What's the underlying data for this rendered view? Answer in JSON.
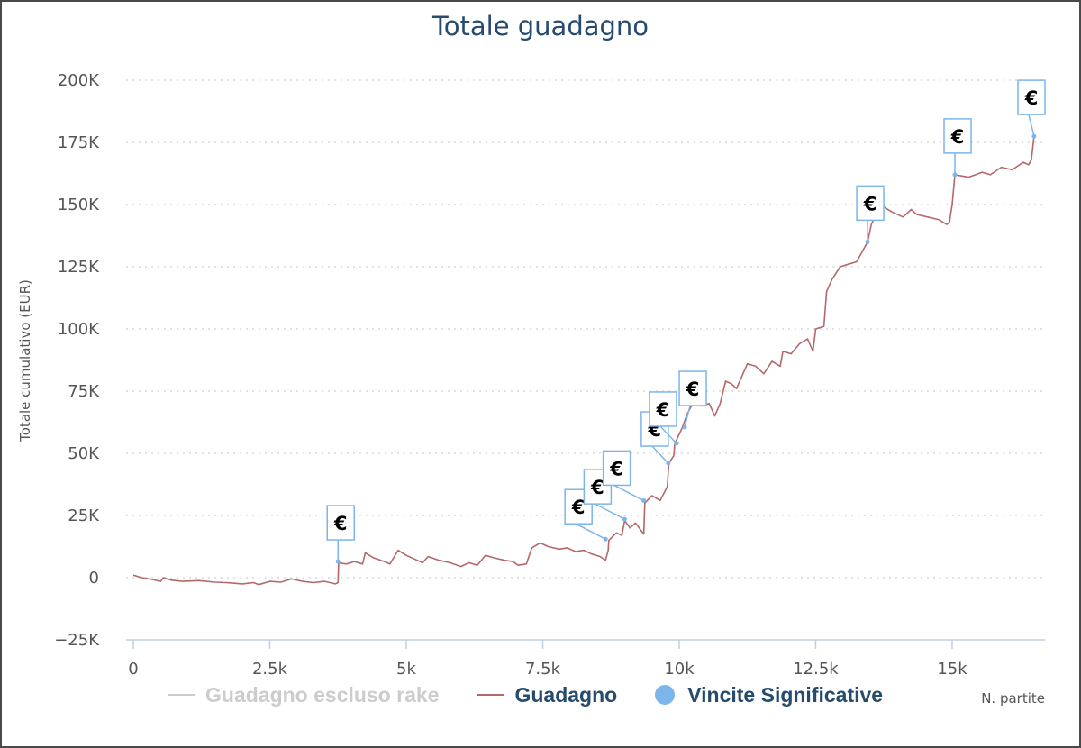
{
  "chart_data": {
    "type": "line",
    "title": "Totale guadagno",
    "xlabel": "N. partite",
    "ylabel": "Totale cumulativo (EUR)",
    "xlim": [
      0,
      16700
    ],
    "ylim": [
      -25000,
      200000
    ],
    "x_ticks": [
      0,
      2500,
      5000,
      7500,
      10000,
      12500,
      15000
    ],
    "x_tick_labels": [
      "0",
      "2.5k",
      "5k",
      "7.5k",
      "10k",
      "12.5k",
      "15k"
    ],
    "y_ticks": [
      -25000,
      0,
      25000,
      50000,
      75000,
      100000,
      125000,
      150000,
      175000,
      200000
    ],
    "y_tick_labels": [
      "−25K",
      "0",
      "25K",
      "50K",
      "75K",
      "100K",
      "125K",
      "150K",
      "175K",
      "200K"
    ],
    "grid": "horizontal dotted",
    "legend_position": "bottom",
    "series": [
      {
        "name": "Guadagno escluso rake",
        "color": "#cccccc",
        "hidden": true,
        "points": []
      },
      {
        "name": "Guadagno",
        "color": "#b4686b",
        "points": [
          [
            0,
            1000
          ],
          [
            150,
            0
          ],
          [
            300,
            -500
          ],
          [
            500,
            -1500
          ],
          [
            550,
            0
          ],
          [
            700,
            -1000
          ],
          [
            900,
            -1500
          ],
          [
            1200,
            -1200
          ],
          [
            1500,
            -1800
          ],
          [
            1700,
            -2000
          ],
          [
            2000,
            -2500
          ],
          [
            2200,
            -2000
          ],
          [
            2300,
            -2800
          ],
          [
            2500,
            -1500
          ],
          [
            2700,
            -1800
          ],
          [
            2900,
            -500
          ],
          [
            3100,
            -1500
          ],
          [
            3300,
            -2000
          ],
          [
            3500,
            -1500
          ],
          [
            3700,
            -2500
          ],
          [
            3750,
            -2000
          ],
          [
            3760,
            6000
          ],
          [
            3900,
            5500
          ],
          [
            4050,
            6500
          ],
          [
            4200,
            5500
          ],
          [
            4250,
            10000
          ],
          [
            4400,
            8000
          ],
          [
            4600,
            6500
          ],
          [
            4700,
            5500
          ],
          [
            4850,
            11000
          ],
          [
            5000,
            9000
          ],
          [
            5200,
            7000
          ],
          [
            5300,
            6000
          ],
          [
            5400,
            8500
          ],
          [
            5600,
            7000
          ],
          [
            5800,
            6000
          ],
          [
            6000,
            4500
          ],
          [
            6150,
            6000
          ],
          [
            6300,
            5000
          ],
          [
            6450,
            9000
          ],
          [
            6600,
            8000
          ],
          [
            6800,
            7000
          ],
          [
            6950,
            6500
          ],
          [
            7050,
            5000
          ],
          [
            7200,
            5500
          ],
          [
            7300,
            12000
          ],
          [
            7450,
            14000
          ],
          [
            7600,
            12500
          ],
          [
            7800,
            11500
          ],
          [
            7950,
            12000
          ],
          [
            8100,
            10500
          ],
          [
            8250,
            11000
          ],
          [
            8400,
            9500
          ],
          [
            8550,
            8500
          ],
          [
            8650,
            7000
          ],
          [
            8700,
            11000
          ],
          [
            8710,
            15000
          ],
          [
            8850,
            18000
          ],
          [
            8950,
            17000
          ],
          [
            9000,
            23000
          ],
          [
            9100,
            20000
          ],
          [
            9200,
            22000
          ],
          [
            9300,
            19000
          ],
          [
            9350,
            17500
          ],
          [
            9370,
            30000
          ],
          [
            9500,
            33000
          ],
          [
            9650,
            31000
          ],
          [
            9780,
            36500
          ],
          [
            9810,
            46000
          ],
          [
            9900,
            49000
          ],
          [
            9920,
            54000
          ],
          [
            10050,
            60000
          ],
          [
            10150,
            66000
          ],
          [
            10300,
            72000
          ],
          [
            10400,
            69000
          ],
          [
            10550,
            70000
          ],
          [
            10650,
            65000
          ],
          [
            10750,
            70000
          ],
          [
            10850,
            79000
          ],
          [
            10950,
            78000
          ],
          [
            11050,
            76000
          ],
          [
            11250,
            86000
          ],
          [
            11400,
            85000
          ],
          [
            11550,
            82000
          ],
          [
            11700,
            87000
          ],
          [
            11850,
            85000
          ],
          [
            11900,
            91000
          ],
          [
            12050,
            90000
          ],
          [
            12200,
            94000
          ],
          [
            12350,
            96000
          ],
          [
            12450,
            91000
          ],
          [
            12500,
            100000
          ],
          [
            12650,
            101000
          ],
          [
            12700,
            115000
          ],
          [
            12800,
            120000
          ],
          [
            12950,
            125000
          ],
          [
            13100,
            126000
          ],
          [
            13250,
            127000
          ],
          [
            13300,
            129000
          ],
          [
            13450,
            135000
          ],
          [
            13520,
            142000
          ],
          [
            13600,
            146000
          ],
          [
            13750,
            149000
          ],
          [
            13900,
            147000
          ],
          [
            14100,
            145000
          ],
          [
            14250,
            148000
          ],
          [
            14350,
            146000
          ],
          [
            14550,
            145000
          ],
          [
            14750,
            144000
          ],
          [
            14900,
            142000
          ],
          [
            14950,
            143000
          ],
          [
            15000,
            150000
          ],
          [
            15050,
            162000
          ],
          [
            15300,
            161000
          ],
          [
            15550,
            163000
          ],
          [
            15700,
            162000
          ],
          [
            15900,
            165000
          ],
          [
            16100,
            164000
          ],
          [
            16300,
            167000
          ],
          [
            16400,
            166000
          ],
          [
            16450,
            168000
          ],
          [
            16500,
            177500
          ]
        ]
      },
      {
        "name": "Vincite Significative",
        "color": "#7cb5ec",
        "type": "flags",
        "flag_label": "€",
        "points": [
          [
            3750,
            6500
          ],
          [
            8650,
            15500
          ],
          [
            9000,
            23500
          ],
          [
            9350,
            31000
          ],
          [
            9800,
            46000
          ],
          [
            9950,
            54000
          ],
          [
            10100,
            60500
          ],
          [
            13450,
            135000
          ],
          [
            15050,
            162000
          ],
          [
            16500,
            177500
          ]
        ]
      }
    ]
  },
  "legend": {
    "items": [
      "Guadagno escluso rake",
      "Guadagno",
      "Vincite Significative"
    ]
  }
}
